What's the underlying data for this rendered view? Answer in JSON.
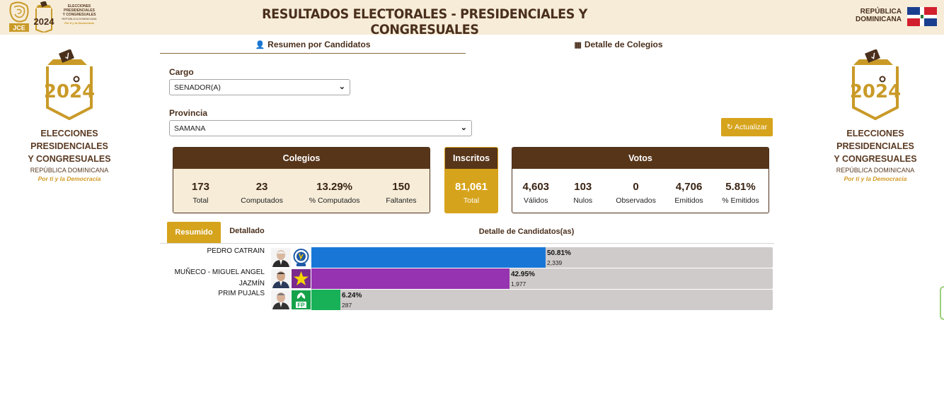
{
  "header": {
    "title": "RESULTADOS ELECTORALES - PRESIDENCIALES Y CONGRESUALES",
    "country_line1": "REPÚBLICA",
    "country_line2": "DOMINICANA",
    "jce": "JCE",
    "mini_year": "2024",
    "mini_title1": "ELECCIONES",
    "mini_title2": "PRESIDENCIALES",
    "mini_title3": "Y CONGRESUALES",
    "mini_sub": "REPÚBLICA DOMINICANA",
    "mini_slogan": "Por ti y la Democracia"
  },
  "side_logo": {
    "year": "2024",
    "line1": "ELECCIONES",
    "line2": "PRESIDENCIALES",
    "line3": "Y CONGRESUALES",
    "country": "REPÚBLICA DOMINICANA",
    "slogan": "Por ti y la Democracia"
  },
  "tabs": {
    "resumen": "Resumen por Candidatos",
    "detalle": "Detalle de Colegios"
  },
  "form": {
    "cargo_label": "Cargo",
    "cargo_value": "SENADOR(A)",
    "provincia_label": "Provincia",
    "provincia_value": "SAMANA",
    "update_label": "Actualizar"
  },
  "colegios": {
    "title": "Colegios",
    "total": "173",
    "total_label": "Total",
    "computados": "23",
    "computados_label": "Computados",
    "pct_computados": "13.29%",
    "pct_computados_label": "% Computados",
    "faltantes": "150",
    "faltantes_label": "Faltantes"
  },
  "inscritos": {
    "title": "Inscritos",
    "total": "81,061",
    "total_label": "Total"
  },
  "votos": {
    "title": "Votos",
    "validos": "4,603",
    "validos_label": "Válidos",
    "nulos": "103",
    "nulos_label": "Nulos",
    "observados": "0",
    "observados_label": "Observados",
    "emitidos": "4,706",
    "emitidos_label": "Emitidos",
    "pct_emitidos": "5.81%",
    "pct_emitidos_label": "% Emitidos"
  },
  "results": {
    "tab_resumido": "Resumido",
    "tab_detallado": "Detallado",
    "detail_title": "Detalle de Candidatos(as)",
    "candidates": [
      {
        "name_line1": "PEDRO CATRAIN",
        "name_line2": "",
        "pct": "50.81%",
        "pct_value": 50.81,
        "votes": "2,339",
        "color": "#1877d6",
        "party_icon": "prm-party-icon"
      },
      {
        "name_line1": "MUÑECO - MIGUEL ANGEL",
        "name_line2": "JAZMÍN",
        "pct": "42.95%",
        "pct_value": 42.95,
        "votes": "1,977",
        "color": "#9633b0",
        "party_icon": "pld-party-icon"
      },
      {
        "name_line1": "PRIM PUJALS",
        "name_line2": "",
        "pct": "6.24%",
        "pct_value": 6.24,
        "votes": "287",
        "color": "#18b157",
        "party_icon": "fp-party-icon"
      }
    ],
    "party_labels": {
      "fp": "FP"
    }
  },
  "colors": {
    "brand_brown": "#573519",
    "brand_gold": "#d6a31c",
    "header_bg": "#f6ecd8"
  }
}
